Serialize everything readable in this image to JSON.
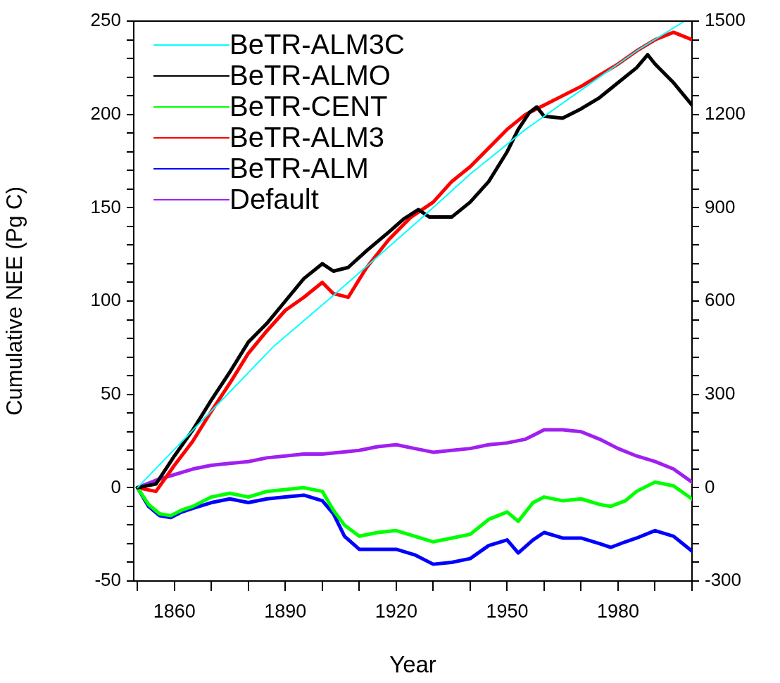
{
  "chart_data": {
    "type": "line",
    "xlabel": "Year",
    "ylabel": "Cumulative NEE (Pg C)",
    "xlim": [
      1849,
      2000
    ],
    "xticks": [
      {
        "value": 1850,
        "label": null
      },
      1860,
      {
        "value": 1870,
        "label": null
      },
      {
        "value": 1880,
        "label": null
      },
      1890,
      {
        "value": 1900,
        "label": null
      },
      {
        "value": 1910,
        "label": null
      },
      1920,
      {
        "value": 1930,
        "label": null
      },
      {
        "value": 1940,
        "label": null
      },
      1950,
      {
        "value": 1960,
        "label": null
      },
      {
        "value": 1970,
        "label": null
      },
      1980,
      {
        "value": 1990,
        "label": null
      },
      {
        "value": 2000,
        "label": null
      }
    ],
    "ylim": [
      -50,
      250
    ],
    "yticks": [
      -50,
      {
        "value": -40,
        "label": null
      },
      {
        "value": -30,
        "label": null
      },
      {
        "value": -20,
        "label": null
      },
      {
        "value": -10,
        "label": null
      },
      0,
      {
        "value": 10,
        "label": null
      },
      {
        "value": 20,
        "label": null
      },
      {
        "value": 30,
        "label": null
      },
      {
        "value": 40,
        "label": null
      },
      50,
      {
        "value": 60,
        "label": null
      },
      {
        "value": 70,
        "label": null
      },
      {
        "value": 80,
        "label": null
      },
      {
        "value": 90,
        "label": null
      },
      100,
      {
        "value": 110,
        "label": null
      },
      {
        "value": 120,
        "label": null
      },
      {
        "value": 130,
        "label": null
      },
      {
        "value": 140,
        "label": null
      },
      150,
      {
        "value": 160,
        "label": null
      },
      {
        "value": 170,
        "label": null
      },
      {
        "value": 180,
        "label": null
      },
      {
        "value": 190,
        "label": null
      },
      200,
      {
        "value": 210,
        "label": null
      },
      {
        "value": 220,
        "label": null
      },
      {
        "value": 230,
        "label": null
      },
      {
        "value": 240,
        "label": null
      },
      250
    ],
    "y2lim": [
      -300,
      1500
    ],
    "y2ticks": [
      -300,
      {
        "value": -240,
        "label": null
      },
      {
        "value": -180,
        "label": null
      },
      {
        "value": -120,
        "label": null
      },
      {
        "value": -60,
        "label": null
      },
      0,
      {
        "value": 60,
        "label": null
      },
      {
        "value": 120,
        "label": null
      },
      {
        "value": 180,
        "label": null
      },
      {
        "value": 240,
        "label": null
      },
      300,
      {
        "value": 360,
        "label": null
      },
      {
        "value": 420,
        "label": null
      },
      {
        "value": 480,
        "label": null
      },
      {
        "value": 540,
        "label": null
      },
      600,
      {
        "value": 660,
        "label": null
      },
      {
        "value": 720,
        "label": null
      },
      {
        "value": 780,
        "label": null
      },
      {
        "value": 840,
        "label": null
      },
      900,
      {
        "value": 960,
        "label": null
      },
      {
        "value": 1020,
        "label": null
      },
      {
        "value": 1080,
        "label": null
      },
      {
        "value": 1140,
        "label": null
      },
      1200,
      {
        "value": 1260,
        "label": null
      },
      {
        "value": 1320,
        "label": null
      },
      {
        "value": 1380,
        "label": null
      },
      {
        "value": 1440,
        "label": null
      },
      1500
    ],
    "grid": false,
    "legend": "top left",
    "marker": "none",
    "line_style": "solid",
    "series": [
      {
        "name": "BeTR-ALM3C",
        "color": "#00ffff",
        "x": [
          1850,
          1867,
          1887,
          1903,
          1926,
          1940,
          1955,
          1970,
          1985,
          1998
        ],
        "values": [
          0,
          35,
          76,
          103,
          143,
          168,
          192,
          213,
          234,
          250
        ]
      },
      {
        "name": "BeTR-ALMO",
        "color": "#000000",
        "x": [
          1850,
          1855,
          1860,
          1865,
          1870,
          1875,
          1880,
          1885,
          1890,
          1895,
          1900,
          1903,
          1907,
          1912,
          1918,
          1922,
          1926,
          1929,
          1935,
          1940,
          1945,
          1950,
          1953,
          1956,
          1958,
          1960,
          1965,
          1970,
          1975,
          1980,
          1985,
          1988,
          1990,
          1995,
          2000
        ],
        "values": [
          0,
          2,
          17,
          31,
          47,
          62,
          78,
          88,
          100,
          112,
          120,
          116,
          118,
          127,
          137,
          144,
          149,
          145,
          145,
          153,
          164,
          180,
          192,
          201,
          204,
          199,
          198,
          203,
          209,
          217,
          225,
          232,
          227,
          217,
          205
        ]
      },
      {
        "name": "BeTR-CENT",
        "color": "#00ff00",
        "x": [
          1850,
          1853,
          1856,
          1859,
          1862,
          1865,
          1870,
          1875,
          1880,
          1885,
          1890,
          1895,
          1900,
          1903,
          1906,
          1910,
          1915,
          1920,
          1925,
          1930,
          1935,
          1940,
          1945,
          1950,
          1953,
          1957,
          1960,
          1965,
          1970,
          1975,
          1978,
          1982,
          1985,
          1990,
          1995,
          2000
        ],
        "values": [
          0,
          -9,
          -14,
          -15,
          -12,
          -10,
          -5,
          -3,
          -5,
          -2,
          -1,
          0,
          -2,
          -12,
          -20,
          -26,
          -24,
          -23,
          -26,
          -29,
          -27,
          -25,
          -17,
          -13,
          -18,
          -8,
          -5,
          -7,
          -6,
          -9,
          -10,
          -7,
          -2,
          3,
          1,
          -6
        ]
      },
      {
        "name": "BeTR-ALM3",
        "color": "#ff0000",
        "x": [
          1850,
          1855,
          1860,
          1865,
          1870,
          1875,
          1880,
          1885,
          1890,
          1895,
          1900,
          1903,
          1907,
          1912,
          1918,
          1924,
          1930,
          1935,
          1940,
          1945,
          1950,
          1955,
          1960,
          1965,
          1970,
          1975,
          1980,
          1985,
          1990,
          1995,
          2000
        ],
        "values": [
          0,
          -2,
          12,
          25,
          41,
          56,
          72,
          84,
          95,
          102,
          110,
          104,
          102,
          118,
          133,
          145,
          153,
          164,
          172,
          182,
          192,
          200,
          205,
          210,
          215,
          221,
          227,
          234,
          240,
          244,
          240
        ]
      },
      {
        "name": "BeTR-ALM",
        "color": "#0000ff",
        "x": [
          1850,
          1853,
          1856,
          1859,
          1862,
          1865,
          1870,
          1875,
          1880,
          1885,
          1890,
          1895,
          1900,
          1903,
          1906,
          1910,
          1915,
          1920,
          1925,
          1930,
          1935,
          1940,
          1945,
          1950,
          1953,
          1957,
          1960,
          1965,
          1970,
          1975,
          1978,
          1982,
          1985,
          1990,
          1995,
          2000
        ],
        "values": [
          0,
          -10,
          -15,
          -16,
          -13,
          -11,
          -8,
          -6,
          -8,
          -6,
          -5,
          -4,
          -7,
          -14,
          -26,
          -33,
          -33,
          -33,
          -36,
          -41,
          -40,
          -38,
          -31,
          -28,
          -35,
          -28,
          -24,
          -27,
          -27,
          -30,
          -32,
          -29,
          -27,
          -23,
          -26,
          -34
        ]
      },
      {
        "name": "Default",
        "color": "#a020f0",
        "x": [
          1850,
          1855,
          1860,
          1865,
          1870,
          1875,
          1880,
          1885,
          1890,
          1895,
          1900,
          1905,
          1910,
          1915,
          1920,
          1925,
          1930,
          1935,
          1940,
          1945,
          1950,
          1955,
          1960,
          1965,
          1970,
          1975,
          1980,
          1985,
          1990,
          1995,
          2000
        ],
        "values": [
          0,
          4,
          7,
          10,
          12,
          13,
          14,
          16,
          17,
          18,
          18,
          19,
          20,
          22,
          23,
          21,
          19,
          20,
          21,
          23,
          24,
          26,
          31,
          31,
          30,
          26,
          21,
          17,
          14,
          10,
          3
        ]
      }
    ]
  }
}
